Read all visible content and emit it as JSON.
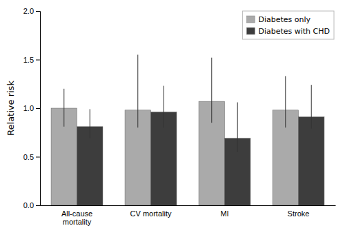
{
  "chart_data": {
    "type": "bar",
    "categories": [
      "All-cause\nmortality",
      "CV mortality",
      "MI",
      "Stroke"
    ],
    "series": [
      {
        "name": "Diabetes only",
        "color": "#aaaaaa",
        "values": [
          1.0,
          0.98,
          1.07,
          0.98
        ],
        "errors_low": [
          0.19,
          0.18,
          0.22,
          0.18
        ],
        "errors_high": [
          0.2,
          0.57,
          0.45,
          0.35
        ]
      },
      {
        "name": "Diabetes with CHD",
        "color": "#3d3d3d",
        "values": [
          0.81,
          0.96,
          0.69,
          0.91
        ],
        "errors_low": [
          0.12,
          0.16,
          0.14,
          0.12
        ],
        "errors_high": [
          0.18,
          0.27,
          0.37,
          0.33
        ]
      }
    ],
    "ylabel": "Relative risk",
    "ylim": [
      0.0,
      2.0
    ],
    "yticks": [
      {
        "value": 0.0,
        "label": "0.0"
      },
      0.5,
      {
        "value": 1.0,
        "label": "1.0"
      },
      1.5,
      {
        "value": 2.0,
        "label": "2.0"
      }
    ],
    "grid": false,
    "legend": "upper right"
  }
}
